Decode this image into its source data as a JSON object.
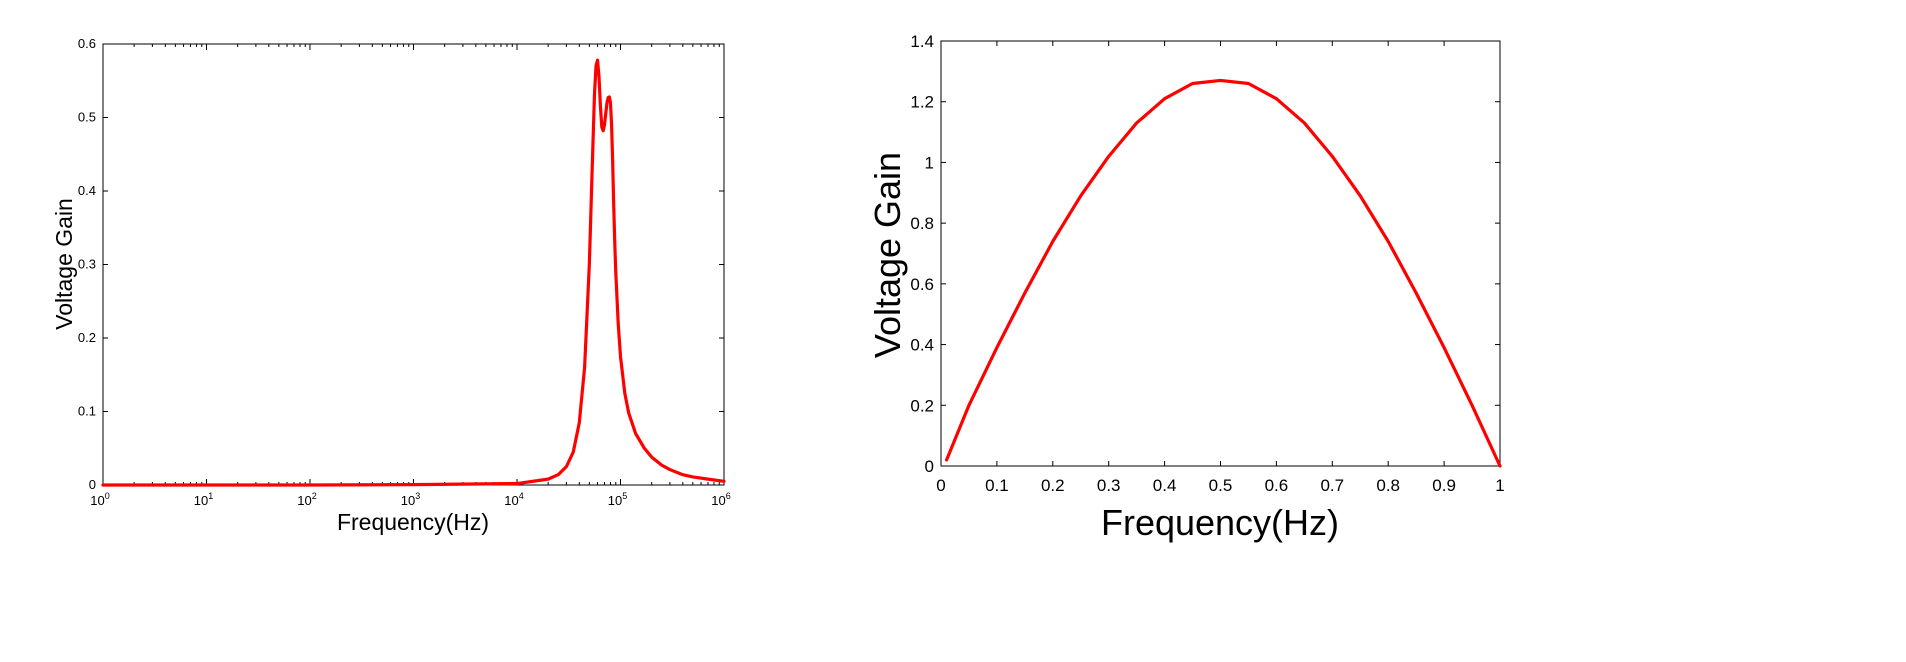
{
  "chart_data": [
    {
      "type": "line",
      "title": "",
      "xlabel": "Frequency(Hz)",
      "ylabel": "Voltage Gain",
      "xscale": "log",
      "xlim": [
        1,
        1000000
      ],
      "ylim": [
        0,
        0.6
      ],
      "x_ticks": [
        {
          "base": "10",
          "exp": "0",
          "value": 1
        },
        {
          "base": "10",
          "exp": "1",
          "value": 10
        },
        {
          "base": "10",
          "exp": "2",
          "value": 100
        },
        {
          "base": "10",
          "exp": "3",
          "value": 1000
        },
        {
          "base": "10",
          "exp": "4",
          "value": 10000
        },
        {
          "base": "10",
          "exp": "5",
          "value": 100000
        },
        {
          "base": "10",
          "exp": "6",
          "value": 1000000
        }
      ],
      "y_ticks": [
        "0",
        "0.1",
        "0.2",
        "0.3",
        "0.4",
        "0.5",
        "0.6"
      ],
      "grid": false,
      "color": "#ff0000",
      "series": [
        {
          "x": [
            1,
            10,
            100,
            1000,
            10000,
            20000,
            25000,
            30000,
            35000,
            40000,
            45000,
            50000,
            53000,
            56000,
            58000,
            60000,
            62000,
            64000,
            66000,
            68000,
            70000,
            72000,
            74000,
            76000,
            78000,
            80000,
            82000,
            84000,
            86000,
            88000,
            90000,
            95000,
            100000,
            110000,
            120000,
            140000,
            170000,
            200000,
            250000,
            300000,
            400000,
            500000,
            700000,
            1000000
          ],
          "y": [
            0,
            0,
            0,
            0.0005,
            0.002,
            0.008,
            0.014,
            0.025,
            0.045,
            0.085,
            0.16,
            0.3,
            0.42,
            0.53,
            0.57,
            0.578,
            0.555,
            0.515,
            0.487,
            0.482,
            0.49,
            0.505,
            0.52,
            0.527,
            0.528,
            0.52,
            0.49,
            0.44,
            0.38,
            0.33,
            0.29,
            0.22,
            0.175,
            0.125,
            0.098,
            0.07,
            0.05,
            0.038,
            0.027,
            0.021,
            0.014,
            0.011,
            0.008,
            0.005
          ]
        }
      ]
    },
    {
      "type": "line",
      "title": "",
      "xlabel": "Frequency(Hz)",
      "ylabel": "Voltage Gain",
      "xlim": [
        0,
        1
      ],
      "ylim": [
        0,
        1.4
      ],
      "x_ticks": [
        "0",
        "0.1",
        "0.2",
        "0.3",
        "0.4",
        "0.5",
        "0.6",
        "0.7",
        "0.8",
        "0.9",
        "1"
      ],
      "y_ticks": [
        "0",
        "0.2",
        "0.4",
        "0.6",
        "0.8",
        "1",
        "1.2",
        "1.4"
      ],
      "grid": false,
      "color": "#ff0000",
      "series": [
        {
          "x": [
            0.01,
            0.05,
            0.1,
            0.15,
            0.2,
            0.25,
            0.3,
            0.35,
            0.4,
            0.45,
            0.5,
            0.55,
            0.6,
            0.65,
            0.7,
            0.75,
            0.8,
            0.85,
            0.9,
            0.95,
            1.0
          ],
          "y": [
            0.02,
            0.2,
            0.39,
            0.57,
            0.74,
            0.89,
            1.02,
            1.13,
            1.21,
            1.26,
            1.27,
            1.26,
            1.21,
            1.13,
            1.02,
            0.89,
            0.74,
            0.57,
            0.39,
            0.2,
            0.0
          ]
        }
      ]
    }
  ]
}
